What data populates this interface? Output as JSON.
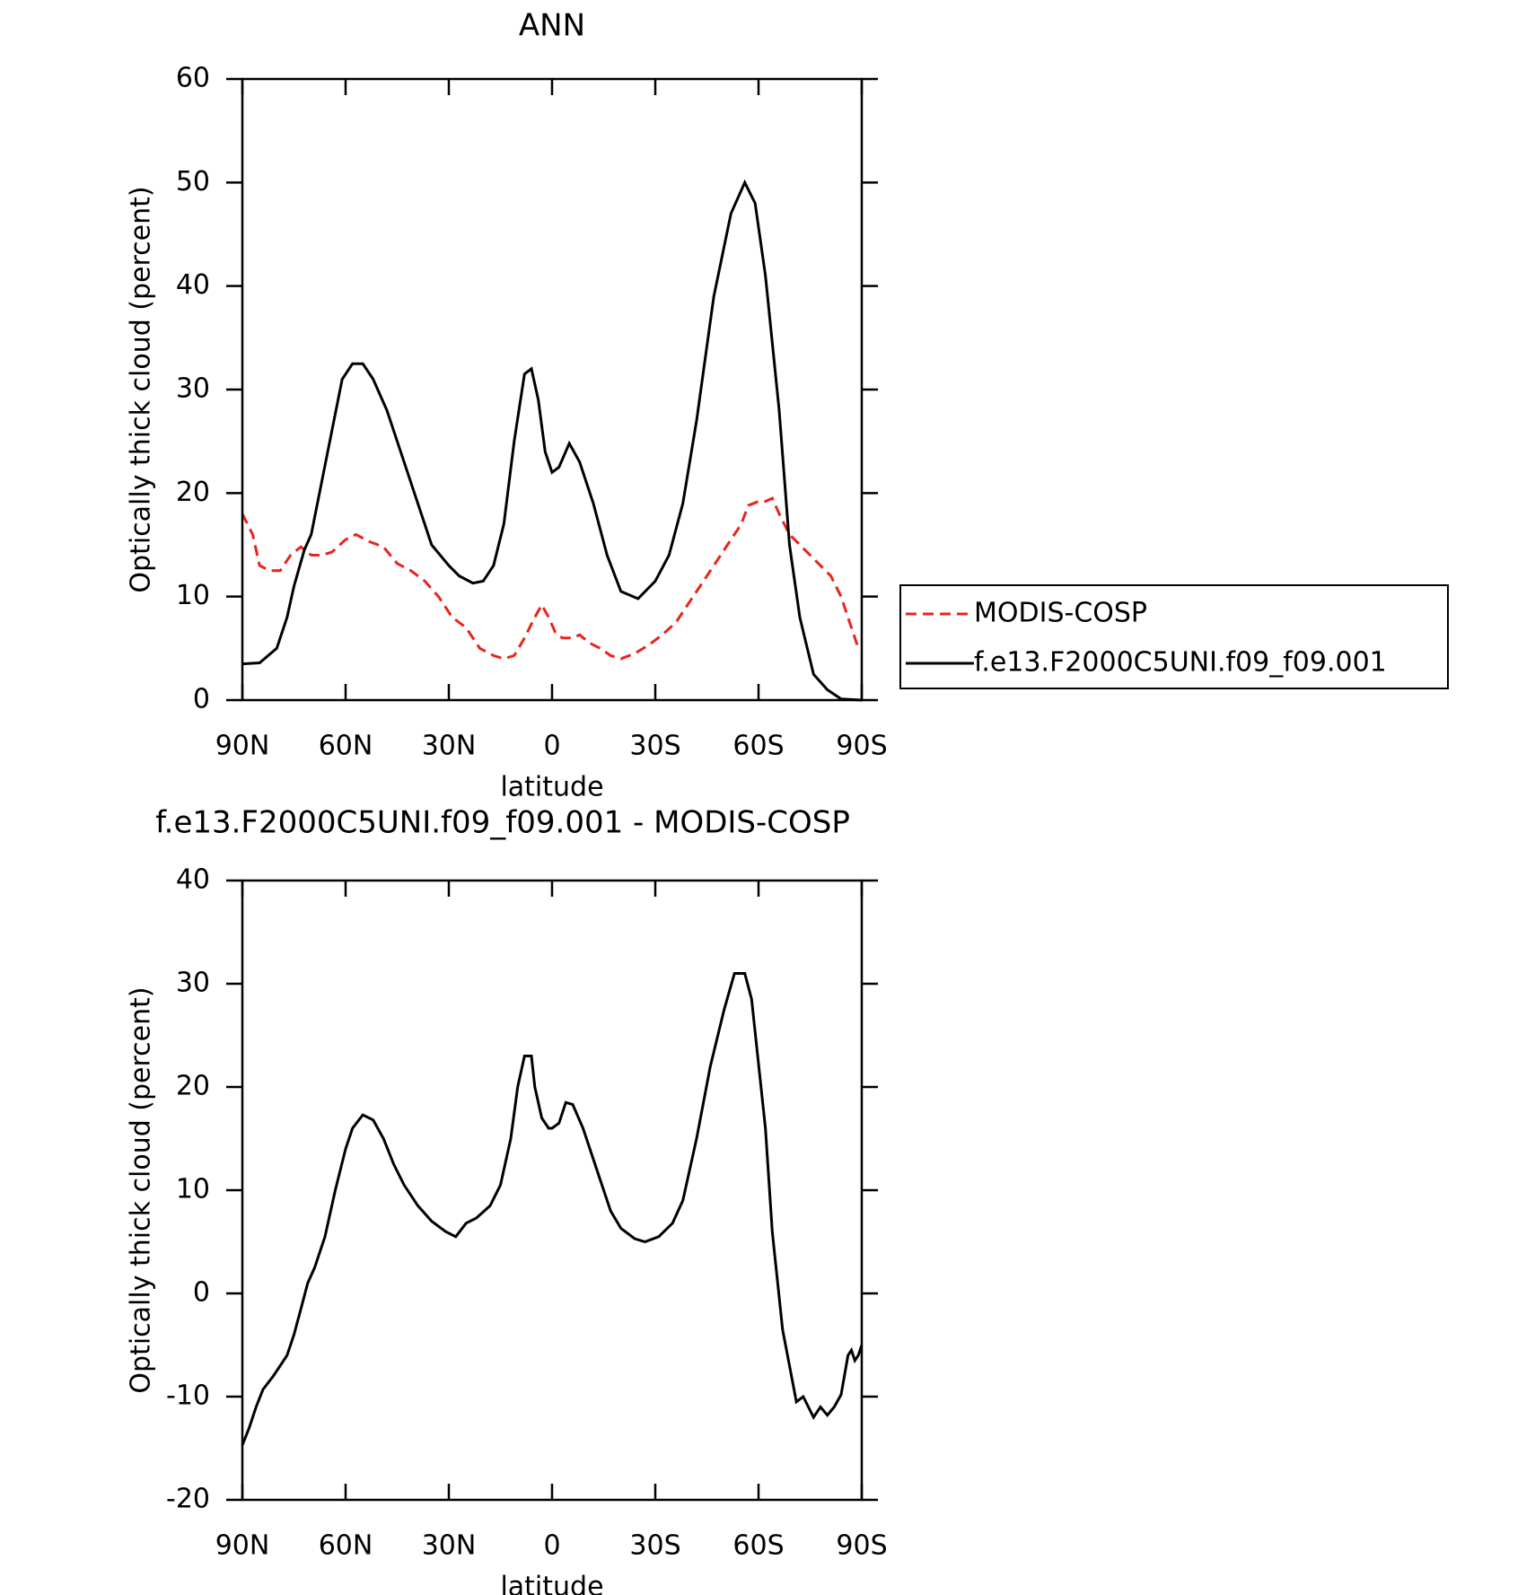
{
  "chart_data": [
    {
      "type": "line",
      "title": "ANN",
      "xlabel": "latitude",
      "ylabel": "Optically thick cloud (percent)",
      "xlim": [
        90,
        -90
      ],
      "xticks": [
        {
          "value": 90,
          "label": "90N"
        },
        {
          "value": 60,
          "label": "60N"
        },
        {
          "value": 30,
          "label": "30N"
        },
        0,
        {
          "value": -30,
          "label": "30S"
        },
        {
          "value": -60,
          "label": "60S"
        },
        {
          "value": -90,
          "label": "90S"
        }
      ],
      "ylim": [
        0,
        60
      ],
      "yticks": [
        0,
        10,
        20,
        30,
        40,
        50,
        60
      ],
      "legend": "right",
      "series": [
        {
          "name": "MODIS-COSP",
          "color": "#e8241c",
          "line_style": "dashed",
          "x": [
            90,
            87,
            85,
            82,
            79,
            76,
            73,
            70,
            67,
            64,
            60,
            57,
            53,
            49,
            45,
            41,
            37,
            33,
            29,
            25,
            21,
            17,
            14,
            11,
            8,
            5,
            3,
            1,
            -1,
            -3,
            -6,
            -8,
            -11,
            -14,
            -17,
            -20,
            -24,
            -28,
            -32,
            -36,
            -40,
            -44,
            -48,
            -52,
            -55,
            -57,
            -60,
            -62,
            -64,
            -66,
            -69,
            -72,
            -75,
            -78,
            -81,
            -84,
            -87,
            -89
          ],
          "values": [
            18,
            16,
            13,
            12.5,
            12.5,
            14,
            14.8,
            14,
            14,
            14.3,
            15.5,
            16,
            15.3,
            14.8,
            13.2,
            12.5,
            11.5,
            10,
            8,
            7,
            5,
            4.3,
            4,
            4.3,
            6,
            8,
            9.2,
            8,
            6.5,
            6,
            6,
            6.3,
            5.5,
            5,
            4.3,
            4,
            4.5,
            5.3,
            6.3,
            7.5,
            9.5,
            11.5,
            13.5,
            15.5,
            17,
            18.8,
            19.2,
            19.2,
            19.5,
            18,
            16,
            15,
            14,
            13,
            12,
            10,
            7,
            5
          ]
        },
        {
          "name": "f.e13.F2000C5UNI.f09_f09.001",
          "color": "#000000",
          "line_style": "solid",
          "x": [
            90,
            85,
            80,
            77,
            75,
            72,
            70,
            67,
            64,
            61,
            58,
            55,
            52,
            48,
            45,
            42,
            38,
            35,
            30,
            27,
            23,
            20,
            17,
            14,
            11,
            8,
            6,
            4,
            2,
            0,
            -2,
            -5,
            -8,
            -12,
            -16,
            -20,
            -25,
            -30,
            -34,
            -38,
            -42,
            -47,
            -52,
            -56,
            -59,
            -62,
            -66,
            -69,
            -72,
            -76,
            -80,
            -84,
            -90
          ],
          "values": [
            3.5,
            3.6,
            5,
            8,
            11,
            14.5,
            16,
            21,
            26,
            31,
            32.5,
            32.5,
            31,
            28,
            25,
            22,
            18,
            15,
            13,
            12,
            11.3,
            11.5,
            13,
            17,
            25,
            31.5,
            32,
            29,
            24,
            22,
            22.5,
            24.8,
            23,
            19,
            14,
            10.5,
            9.8,
            11.5,
            14,
            19,
            27,
            39,
            47,
            50,
            48,
            41,
            28,
            15,
            8,
            2.5,
            1,
            0.1,
            0
          ]
        }
      ]
    },
    {
      "type": "line",
      "title": "f.e13.F2000C5UNI.f09_f09.001 - MODIS-COSP",
      "xlabel": "latitude",
      "ylabel": "Optically thick cloud (percent)",
      "xlim": [
        90,
        -90
      ],
      "xticks": [
        {
          "value": 90,
          "label": "90N"
        },
        {
          "value": 60,
          "label": "60N"
        },
        {
          "value": 30,
          "label": "30N"
        },
        0,
        {
          "value": -30,
          "label": "30S"
        },
        {
          "value": -60,
          "label": "60S"
        },
        {
          "value": -90,
          "label": "90S"
        }
      ],
      "ylim": [
        -20,
        40
      ],
      "yticks": [
        -20,
        -10,
        0,
        10,
        20,
        30,
        40
      ],
      "series": [
        {
          "color": "#000000",
          "line_style": "solid",
          "x": [
            90,
            88,
            86,
            84,
            81,
            79,
            77,
            75,
            73,
            71,
            69,
            66,
            63,
            60,
            58,
            55,
            52,
            49,
            46,
            43,
            39,
            35,
            31,
            28,
            25,
            22,
            18,
            15,
            12,
            10,
            8,
            6,
            5,
            3,
            1,
            0,
            -2,
            -4,
            -6,
            -9,
            -13,
            -17,
            -20,
            -24,
            -27,
            -31,
            -35,
            -38,
            -42,
            -46,
            -50,
            -53,
            -56,
            -58,
            -62,
            -64,
            -67,
            -69,
            -71,
            -73,
            -76,
            -78,
            -80,
            -82,
            -84,
            -86,
            -87,
            -88,
            -89,
            -90
          ],
          "values": [
            -14.7,
            -13,
            -11,
            -9.3,
            -8,
            -7,
            -6,
            -4,
            -1.5,
            1,
            2.5,
            5.5,
            10,
            14,
            16,
            17.3,
            16.8,
            15,
            12.5,
            10.5,
            8.5,
            7,
            6,
            5.5,
            6.8,
            7.3,
            8.5,
            10.5,
            15,
            20,
            23,
            23,
            20,
            17,
            16,
            16,
            16.5,
            18.5,
            18.3,
            16,
            12,
            8,
            6.3,
            5.3,
            5,
            5.5,
            6.8,
            9,
            15,
            22,
            27.5,
            31,
            31,
            28.5,
            16,
            6,
            -3.5,
            -7,
            -10.5,
            -10,
            -12,
            -11,
            -11.8,
            -11,
            -9.8,
            -6,
            -5.5,
            -6.5,
            -6,
            -5
          ]
        }
      ]
    }
  ]
}
